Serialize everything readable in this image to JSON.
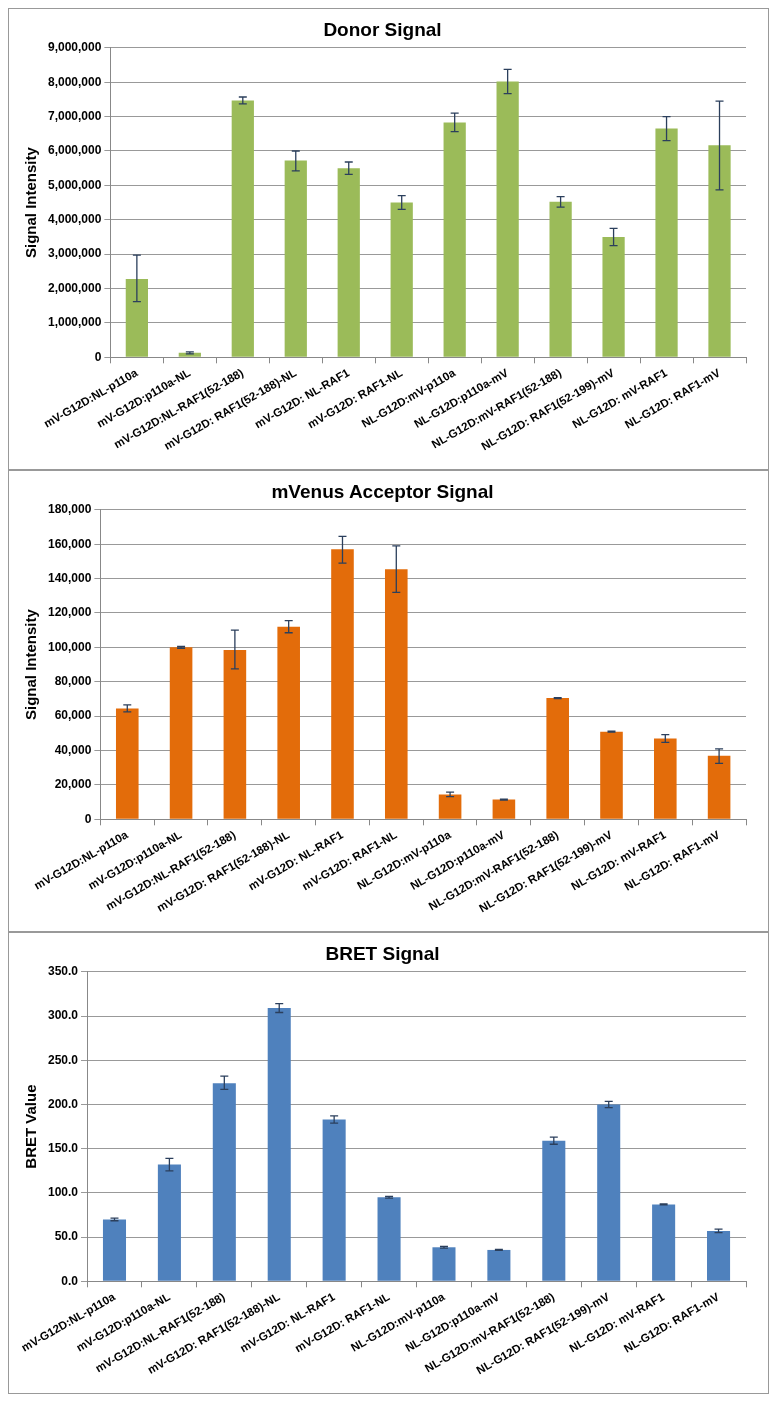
{
  "chart_data": [
    {
      "type": "bar",
      "title": "Donor Signal",
      "ylabel": "Signal Intensity",
      "categories": [
        "mV-G12D:NL-p110a",
        "mV-G12D:p110a-NL",
        "mV-G12D:NL-RAF1(52-188)",
        "mV-G12D: RAF1(52-188)-NL",
        "mV-G12D: NL-RAF1",
        "mV-G12D: RAF1-NL",
        "NL-G12D:mV-p110a",
        "NL-G12D:p110a-mV",
        "NL-G12D:mV-RAF1(52-188)",
        "NL-G12D: RAF1(52-199)-mV",
        "NL-G12D: mV-RAF1",
        "NL-G12D: RAF1-mV"
      ],
      "values": [
        2280000,
        130000,
        7470000,
        5720000,
        5500000,
        4500000,
        6830000,
        8020000,
        4520000,
        3500000,
        6650000,
        6170000
      ],
      "errors": [
        [
          1620000,
          2970000
        ],
        30000,
        100000,
        [
          5420000,
          6000000
        ],
        180000,
        200000,
        270000,
        350000,
        150000,
        250000,
        350000,
        [
          4870000,
          7450000
        ]
      ],
      "color": "#9bbb59",
      "ylim": [
        0,
        9000000
      ],
      "yticks": [
        {
          "value": 0,
          "label": "0"
        },
        {
          "value": 1000000,
          "label": "1,000,000"
        },
        {
          "value": 2000000,
          "label": "2,000,000"
        },
        {
          "value": 3000000,
          "label": "3,000,000"
        },
        {
          "value": 4000000,
          "label": "4,000,000"
        },
        {
          "value": 5000000,
          "label": "5,000,000"
        },
        {
          "value": 6000000,
          "label": "6,000,000"
        },
        {
          "value": 7000000,
          "label": "7,000,000"
        },
        {
          "value": 8000000,
          "label": "8,000,000"
        },
        {
          "value": 9000000,
          "label": "9,000,000"
        }
      ],
      "grid": "y",
      "legend": false
    },
    {
      "type": "bar",
      "title": "mVenus Acceptor Signal",
      "ylabel": "Signal Intensity",
      "categories": [
        "mV-G12D:NL-p110a",
        "mV-G12D:p110a-NL",
        "mV-G12D:NL-RAF1(52-188)",
        "mV-G12D: RAF1(52-188)-NL",
        "mV-G12D: NL-RAF1",
        "mV-G12D: RAF1-NL",
        "NL-G12D:mV-p110a",
        "NL-G12D:p110a-mV",
        "NL-G12D:mV-RAF1(52-188)",
        "NL-G12D: RAF1(52-199)-mV",
        "NL-G12D: mV-RAF1",
        "NL-G12D: RAF1-mV"
      ],
      "values": [
        64500,
        100000,
        98500,
        112000,
        157000,
        145500,
        14500,
        11500,
        70500,
        51000,
        47000,
        37000
      ],
      "errors": [
        2000,
        500,
        [
          87500,
          110000
        ],
        [
          108500,
          115500
        ],
        [
          149000,
          164500
        ],
        [
          132000,
          159000
        ],
        1300,
        300,
        300,
        300,
        2300,
        [
          32500,
          41000
        ]
      ],
      "color": "#e36c0a",
      "ylim": [
        0,
        180000
      ],
      "yticks": [
        {
          "value": 0,
          "label": "0"
        },
        {
          "value": 20000,
          "label": "20,000"
        },
        {
          "value": 40000,
          "label": "40,000"
        },
        {
          "value": 60000,
          "label": "60,000"
        },
        {
          "value": 80000,
          "label": "80,000"
        },
        {
          "value": 100000,
          "label": "100,000"
        },
        {
          "value": 120000,
          "label": "120,000"
        },
        {
          "value": 140000,
          "label": "140,000"
        },
        {
          "value": 160000,
          "label": "160,000"
        },
        {
          "value": 180000,
          "label": "180,000"
        }
      ],
      "grid": "y",
      "legend": false
    },
    {
      "type": "bar",
      "title": "BRET Signal",
      "ylabel": "BRET Value",
      "categories": [
        "mV-G12D:NL-p110a",
        "mV-G12D:p110a-NL",
        "mV-G12D:NL-RAF1(52-188)",
        "mV-G12D: RAF1(52-188)-NL",
        "mV-G12D: NL-RAF1",
        "mV-G12D: RAF1-NL",
        "NL-G12D:mV-p110a",
        "NL-G12D:p110a-mV",
        "NL-G12D:mV-RAF1(52-188)",
        "NL-G12D: RAF1(52-199)-mV",
        "NL-G12D: mV-RAF1",
        "NL-G12D: RAF1-mV"
      ],
      "values": [
        70,
        132,
        224,
        309,
        183,
        95,
        38.5,
        35.5,
        159,
        200,
        87,
        57
      ],
      "errors": [
        1.5,
        7,
        [
          217,
          232
        ],
        5,
        4,
        1,
        1,
        0.5,
        4,
        3.5,
        0.5,
        2
      ],
      "color": "#4f81bd",
      "ylim": [
        0,
        350
      ],
      "yticks": [
        {
          "value": 0,
          "label": "0.0"
        },
        {
          "value": 50,
          "label": "50.0"
        },
        {
          "value": 100,
          "label": "100.0"
        },
        {
          "value": 150,
          "label": "150.0"
        },
        {
          "value": 200,
          "label": "200.0"
        },
        {
          "value": 250,
          "label": "250.0"
        },
        {
          "value": 300,
          "label": "300.0"
        },
        {
          "value": 350,
          "label": "350.0"
        }
      ],
      "grid": "y",
      "legend": false
    }
  ]
}
